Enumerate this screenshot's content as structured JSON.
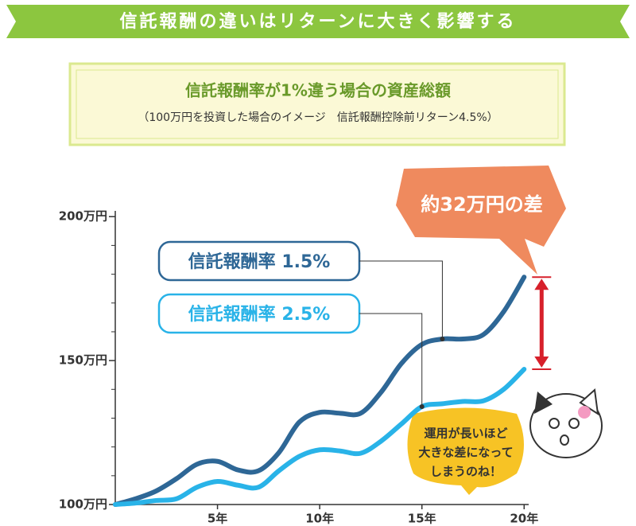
{
  "chart_data": {
    "type": "line",
    "title": "信託報酬の違いはリターンに大きく影響する",
    "subtitle": "信託報酬率が1%違う場合の資産総額",
    "note": "（100万円を投資した場合のイメージ　信託報酬控除前リターン4.5%）",
    "callout": "約32万円の差",
    "bubble": [
      "運用が長いほど",
      "大きな差になって",
      "しまうのね！"
    ],
    "x": [
      0,
      1,
      2,
      3,
      4,
      5,
      6,
      7,
      8,
      9,
      10,
      11,
      12,
      13,
      14,
      15,
      16,
      17,
      18,
      19,
      20
    ],
    "series": [
      {
        "name": "信託報酬率 1.5%",
        "color": "#2e6796",
        "values": [
          100,
          102,
          104.7,
          109,
          114,
          115,
          112,
          111.7,
          118,
          128.6,
          132,
          131.7,
          131.7,
          139,
          149,
          155.6,
          157.5,
          157.5,
          159,
          167,
          179
        ]
      },
      {
        "name": "信託報酬率 2.5%",
        "color": "#29b3e8",
        "values": [
          100,
          100.5,
          101.4,
          102,
          106,
          108,
          106.7,
          106,
          111.7,
          116.7,
          119,
          118.6,
          117.8,
          122,
          128,
          134,
          135,
          135.8,
          136,
          140,
          147
        ]
      }
    ],
    "xlim": [
      0,
      20.3
    ],
    "ylim": [
      100,
      202
    ],
    "xticks": [
      {
        "value": 5,
        "label": "5年"
      },
      {
        "value": 10,
        "label": "10年"
      },
      {
        "value": 15,
        "label": "15年"
      },
      {
        "value": 20,
        "label": "20年"
      }
    ],
    "yticks": [
      {
        "value": 100,
        "label": "100万円"
      },
      {
        "value": 150,
        "label": "150万円"
      },
      {
        "value": 200,
        "label": "200万円"
      }
    ],
    "yminorticks": [
      110,
      120,
      130,
      140,
      160,
      170,
      180,
      190
    ]
  }
}
